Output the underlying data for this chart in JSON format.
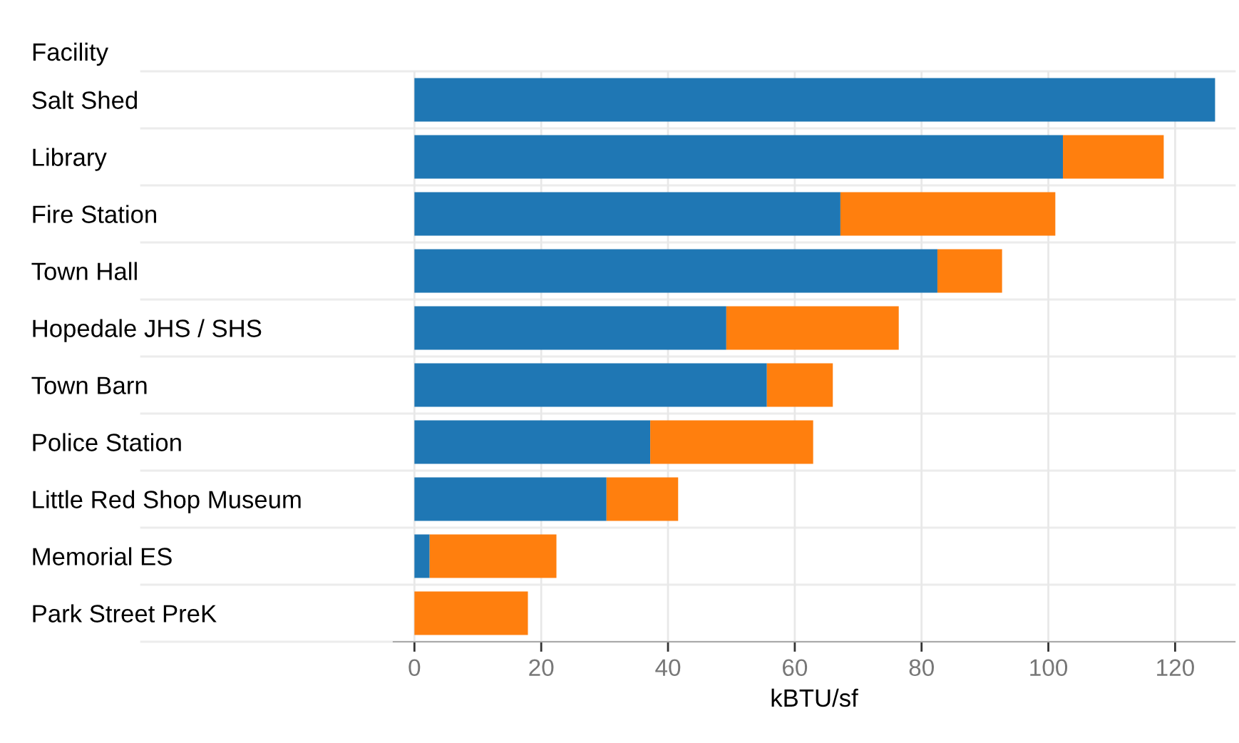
{
  "chart_data": {
    "type": "bar",
    "orientation": "horizontal",
    "stacked": true,
    "ylabel": "Facility",
    "xlabel": "kBTU/sf",
    "categories": [
      "Salt Shed",
      "Library",
      "Fire Station",
      "Town Hall",
      "Hopedale JHS / SHS",
      "Town Barn",
      "Police Station",
      "Little Red Shop Museum",
      "Memorial ES",
      "Park Street PreK"
    ],
    "series": [
      {
        "color": "#1f77b4",
        "values": [
          126.3,
          102.3,
          67.2,
          82.5,
          49.2,
          55.6,
          37.2,
          30.3,
          2.4,
          0
        ]
      },
      {
        "color": "#ff7f0e",
        "values": [
          0,
          15.9,
          33.9,
          10.2,
          27.2,
          10.4,
          25.7,
          11.3,
          20.0,
          17.9
        ]
      }
    ],
    "xlim": [
      -3.3,
      129.4
    ],
    "xticks": [
      0,
      20,
      40,
      60,
      80,
      100,
      120
    ],
    "grid": "x"
  }
}
